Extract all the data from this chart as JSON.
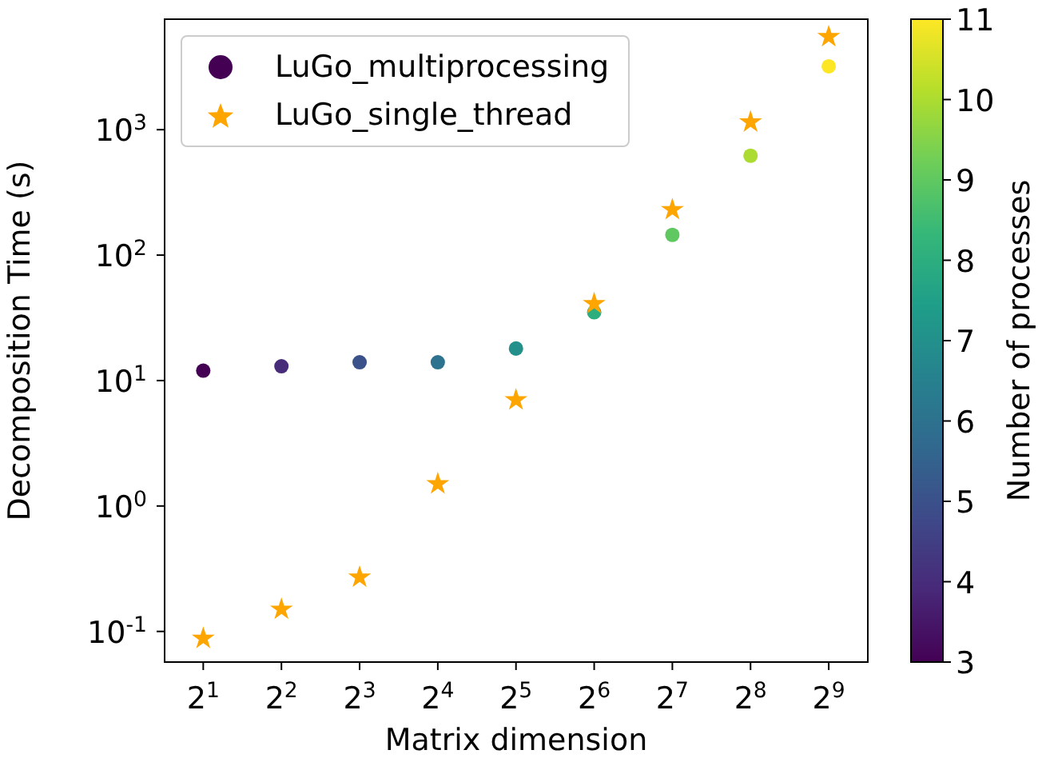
{
  "chart_data": {
    "type": "scatter",
    "xlabel": "Matrix dimension",
    "ylabel": "Decomposition Time (s)",
    "clabel": "Number of processes",
    "x": [
      2,
      4,
      8,
      16,
      32,
      64,
      128,
      256,
      512
    ],
    "series": [
      {
        "name": "LuGo_multiprocessing",
        "type": "scatter",
        "marker": "circle",
        "values": [
          12,
          13,
          14,
          14,
          18,
          35,
          145,
          620,
          3200
        ],
        "colors": [
          "#440154",
          "#472c7a",
          "#3b518a",
          "#2d728e",
          "#23908c",
          "#2dae7f",
          "#60c860",
          "#acdc31",
          "#fde725"
        ]
      },
      {
        "name": "LuGo_single_thread",
        "type": "scatter",
        "marker": "star",
        "color": "#ffa500",
        "values": [
          0.088,
          0.15,
          0.27,
          1.5,
          7,
          41,
          230,
          1150,
          5500
        ]
      }
    ],
    "log": "xy",
    "xlim": [
      1.42,
      724
    ],
    "ylim": [
      0.057,
      7600
    ],
    "xticks": [
      {
        "value": 2,
        "label": "2$^{1}$"
      },
      {
        "value": 4,
        "label": "2$^{2}$"
      },
      {
        "value": 8,
        "label": "2$^{3}$"
      },
      {
        "value": 16,
        "label": "2$^{4}$"
      },
      {
        "value": 32,
        "label": "2$^{5}$"
      },
      {
        "value": 64,
        "label": "2$^{6}$"
      },
      {
        "value": 128,
        "label": "2$^{7}$"
      },
      {
        "value": 256,
        "label": "2$^{8}$"
      },
      {
        "value": 512,
        "label": "2$^{9}$"
      }
    ],
    "yticks": [
      {
        "value": 0.1,
        "label": "10$^{-1}$"
      },
      {
        "value": 1,
        "label": "10$^{0}$"
      },
      {
        "value": 10,
        "label": "10$^{1}$"
      },
      {
        "value": 100,
        "label": "10$^{2}$"
      },
      {
        "value": 1000,
        "label": "10$^{3}$"
      }
    ],
    "clim": [
      3,
      11
    ],
    "cticks": [
      3,
      4,
      5,
      6,
      7,
      8,
      9,
      10,
      11
    ],
    "legend": "top left",
    "grid": false
  }
}
